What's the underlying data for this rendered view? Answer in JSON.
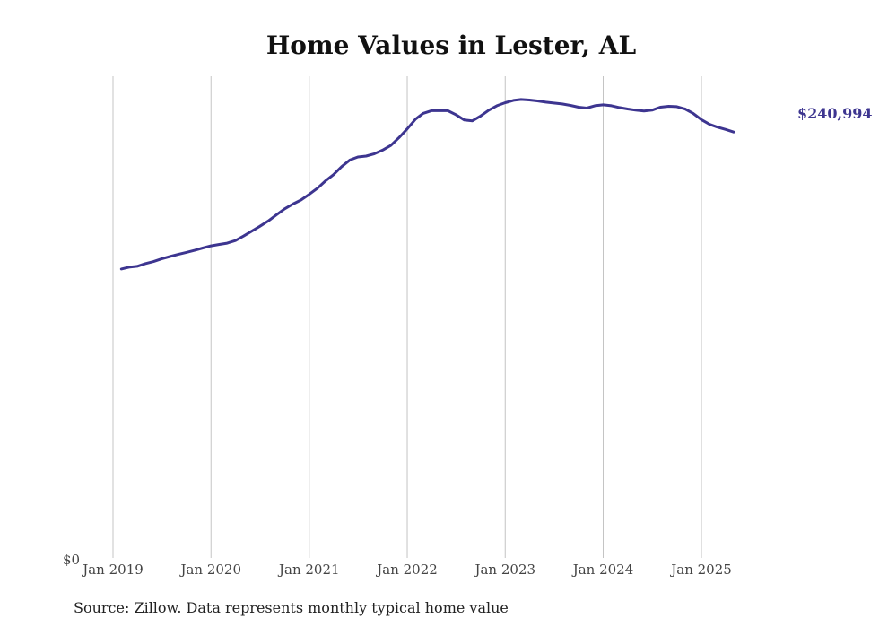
{
  "chart_data": {
    "type": "line",
    "title": "Home Values in Lester, AL",
    "source": "Source: Zillow. Data represents monthly typical home value",
    "y_zero_label": "$0",
    "end_label": "$240,994",
    "line_color": "#3d3590",
    "grid": "vertical",
    "ylim": [
      0,
      285000
    ],
    "x_range": [
      "2019-01-01",
      "2025-12-01"
    ],
    "x_ticks": [
      {
        "date": "2019-01-01",
        "label": "Jan 2019"
      },
      {
        "date": "2020-01-01",
        "label": "Jan 2020"
      },
      {
        "date": "2021-01-01",
        "label": "Jan 2021"
      },
      {
        "date": "2022-01-01",
        "label": "Jan 2022"
      },
      {
        "date": "2023-01-01",
        "label": "Jan 2023"
      },
      {
        "date": "2024-01-01",
        "label": "Jan 2024"
      },
      {
        "date": "2025-01-01",
        "label": "Jan 2025"
      }
    ],
    "series": [
      {
        "points": [
          [
            "2019-02",
            164000
          ],
          [
            "2019-03",
            165000
          ],
          [
            "2019-04",
            165500
          ],
          [
            "2019-05",
            167000
          ],
          [
            "2019-06",
            168200
          ],
          [
            "2019-07",
            169700
          ],
          [
            "2019-08",
            171000
          ],
          [
            "2019-09",
            172200
          ],
          [
            "2019-10",
            173300
          ],
          [
            "2019-11",
            174500
          ],
          [
            "2019-12",
            175800
          ],
          [
            "2020-01",
            177000
          ],
          [
            "2020-02",
            177800
          ],
          [
            "2020-03",
            178500
          ],
          [
            "2020-04",
            180000
          ],
          [
            "2020-05",
            182500
          ],
          [
            "2020-06",
            185300
          ],
          [
            "2020-07",
            188000
          ],
          [
            "2020-08",
            191000
          ],
          [
            "2020-09",
            194500
          ],
          [
            "2020-10",
            197800
          ],
          [
            "2020-11",
            200500
          ],
          [
            "2020-12",
            202800
          ],
          [
            "2021-01",
            206000
          ],
          [
            "2021-02",
            209500
          ],
          [
            "2021-03",
            213300
          ],
          [
            "2021-04",
            217000
          ],
          [
            "2021-05",
            221500
          ],
          [
            "2021-06",
            225300
          ],
          [
            "2021-07",
            227000
          ],
          [
            "2021-08",
            227500
          ],
          [
            "2021-09",
            228800
          ],
          [
            "2021-10",
            230800
          ],
          [
            "2021-11",
            233500
          ],
          [
            "2021-12",
            237800
          ],
          [
            "2022-01",
            242800
          ],
          [
            "2022-02",
            248300
          ],
          [
            "2022-03",
            251500
          ],
          [
            "2022-04",
            253000
          ],
          [
            "2022-05",
            253000
          ],
          [
            "2022-06",
            253000
          ],
          [
            "2022-07",
            250800
          ],
          [
            "2022-08",
            247800
          ],
          [
            "2022-09",
            247300
          ],
          [
            "2022-10",
            250000
          ],
          [
            "2022-11",
            253300
          ],
          [
            "2022-12",
            255800
          ],
          [
            "2023-01",
            257500
          ],
          [
            "2023-02",
            258800
          ],
          [
            "2023-03",
            259300
          ],
          [
            "2023-04",
            259000
          ],
          [
            "2023-05",
            258500
          ],
          [
            "2023-06",
            257800
          ],
          [
            "2023-07",
            257300
          ],
          [
            "2023-08",
            256800
          ],
          [
            "2023-09",
            256000
          ],
          [
            "2023-10",
            255000
          ],
          [
            "2023-11",
            254500
          ],
          [
            "2023-12",
            255800
          ],
          [
            "2024-01",
            256300
          ],
          [
            "2024-02",
            255800
          ],
          [
            "2024-03",
            254800
          ],
          [
            "2024-04",
            254000
          ],
          [
            "2024-05",
            253300
          ],
          [
            "2024-06",
            252800
          ],
          [
            "2024-07",
            253300
          ],
          [
            "2024-08",
            255000
          ],
          [
            "2024-09",
            255500
          ],
          [
            "2024-10",
            255300
          ],
          [
            "2024-11",
            254000
          ],
          [
            "2024-12",
            251500
          ],
          [
            "2025-01",
            248000
          ],
          [
            "2025-02",
            245300
          ],
          [
            "2025-03",
            243800
          ],
          [
            "2025-04",
            242500
          ],
          [
            "2025-05",
            240994
          ]
        ]
      }
    ]
  }
}
